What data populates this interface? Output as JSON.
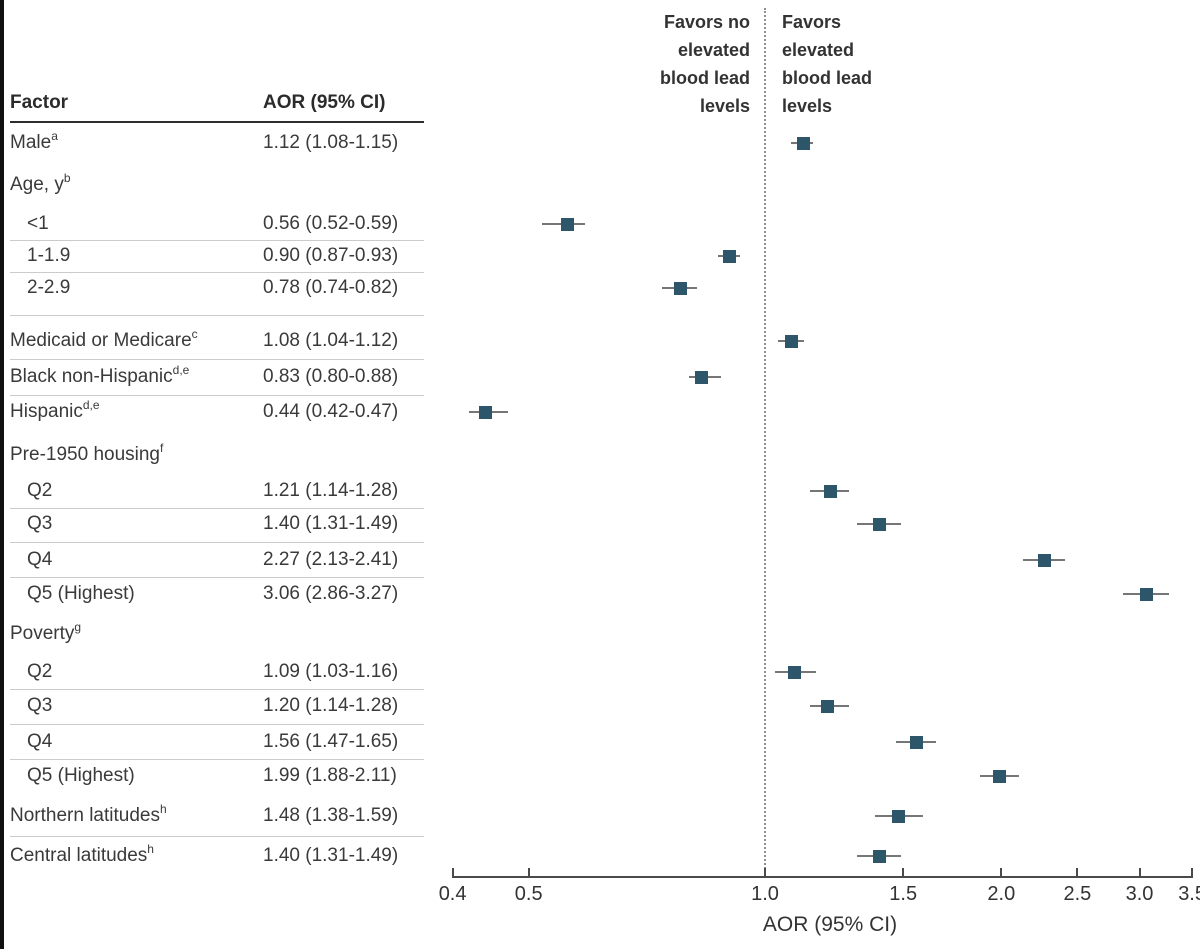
{
  "chart_data": {
    "type": "forest",
    "x_scale": "log",
    "xlim": [
      0.4,
      3.5
    ],
    "x_ticks": [
      "0.4",
      "0.5",
      "1.0",
      "1.5",
      "2.0",
      "2.5",
      "3.0",
      "3.5"
    ],
    "xlabel": "AOR (95% CI)",
    "reference_line": 1.0,
    "annotations": {
      "favors_left": "Favors no\nelevated\nblood lead\nlevels",
      "favors_right": "Favors\nelevated\nblood lead\nlevels"
    },
    "columns": [
      "Factor",
      "AOR (95% CI)"
    ],
    "colors": {
      "marker": "#2d566a",
      "ci_line": "#767676",
      "axis": "#4a4a4a",
      "text": "#3a3a3a"
    },
    "rows": [
      {
        "type": "data",
        "label": "Male",
        "sup": "a",
        "indent": 0,
        "aor_text": "1.12 (1.08-1.15)",
        "est": 1.12,
        "lo": 1.08,
        "hi": 1.15,
        "sep_after": false
      },
      {
        "type": "group",
        "label": "Age, y",
        "sup": "b"
      },
      {
        "type": "data",
        "label": "<1",
        "sup": "",
        "indent": 1,
        "aor_text": "0.56 (0.52-0.59)",
        "est": 0.56,
        "lo": 0.52,
        "hi": 0.59,
        "sep_after": true
      },
      {
        "type": "data",
        "label": "1-1.9",
        "sup": "",
        "indent": 1,
        "aor_text": "0.90 (0.87-0.93)",
        "est": 0.9,
        "lo": 0.87,
        "hi": 0.93,
        "sep_after": true
      },
      {
        "type": "data",
        "label": "2-2.9",
        "sup": "",
        "indent": 1,
        "aor_text": "0.78 (0.74-0.82)",
        "est": 0.78,
        "lo": 0.74,
        "hi": 0.82,
        "sep_after": true
      },
      {
        "type": "data",
        "label": "Medicaid or Medicare",
        "sup": "c",
        "indent": 0,
        "aor_text": "1.08 (1.04-1.12)",
        "est": 1.08,
        "lo": 1.04,
        "hi": 1.12,
        "sep_after": true
      },
      {
        "type": "data",
        "label": "Black non-Hispanic",
        "sup": "d,e",
        "indent": 0,
        "aor_text": "0.83 (0.80-0.88)",
        "est": 0.83,
        "lo": 0.8,
        "hi": 0.88,
        "sep_after": true
      },
      {
        "type": "data",
        "label": "Hispanic",
        "sup": "d,e",
        "indent": 0,
        "aor_text": "0.44 (0.42-0.47)",
        "est": 0.44,
        "lo": 0.42,
        "hi": 0.47,
        "sep_after": false
      },
      {
        "type": "group",
        "label": "Pre-1950 housing",
        "sup": "f"
      },
      {
        "type": "data",
        "label": "Q2",
        "sup": "",
        "indent": 1,
        "aor_text": "1.21 (1.14-1.28)",
        "est": 1.21,
        "lo": 1.14,
        "hi": 1.28,
        "sep_after": true
      },
      {
        "type": "data",
        "label": "Q3",
        "sup": "",
        "indent": 1,
        "aor_text": "1.40 (1.31-1.49)",
        "est": 1.4,
        "lo": 1.31,
        "hi": 1.49,
        "sep_after": true
      },
      {
        "type": "data",
        "label": "Q4",
        "sup": "",
        "indent": 1,
        "aor_text": "2.27 (2.13-2.41)",
        "est": 2.27,
        "lo": 2.13,
        "hi": 2.41,
        "sep_after": true
      },
      {
        "type": "data",
        "label": "Q5 (Highest)",
        "sup": "",
        "indent": 1,
        "aor_text": "3.06 (2.86-3.27)",
        "est": 3.06,
        "lo": 2.86,
        "hi": 3.27,
        "sep_after": false
      },
      {
        "type": "group",
        "label": "Poverty",
        "sup": "g"
      },
      {
        "type": "data",
        "label": "Q2",
        "sup": "",
        "indent": 1,
        "aor_text": "1.09 (1.03-1.16)",
        "est": 1.09,
        "lo": 1.03,
        "hi": 1.16,
        "sep_after": true
      },
      {
        "type": "data",
        "label": "Q3",
        "sup": "",
        "indent": 1,
        "aor_text": "1.20 (1.14-1.28)",
        "est": 1.2,
        "lo": 1.14,
        "hi": 1.28,
        "sep_after": true
      },
      {
        "type": "data",
        "label": "Q4",
        "sup": "",
        "indent": 1,
        "aor_text": "1.56 (1.47-1.65)",
        "est": 1.56,
        "lo": 1.47,
        "hi": 1.65,
        "sep_after": true
      },
      {
        "type": "data",
        "label": "Q5 (Highest)",
        "sup": "",
        "indent": 1,
        "aor_text": "1.99 (1.88-2.11)",
        "est": 1.99,
        "lo": 1.88,
        "hi": 2.11,
        "sep_after": false
      },
      {
        "type": "data",
        "label": "Northern latitudes",
        "sup": "h",
        "indent": 0,
        "aor_text": "1.48 (1.38-1.59)",
        "est": 1.48,
        "lo": 1.38,
        "hi": 1.59,
        "sep_after": true
      },
      {
        "type": "data",
        "label": "Central latitudes",
        "sup": "h",
        "indent": 0,
        "aor_text": "1.40 (1.31-1.49)",
        "est": 1.4,
        "lo": 1.31,
        "hi": 1.49,
        "sep_after": false
      }
    ]
  }
}
